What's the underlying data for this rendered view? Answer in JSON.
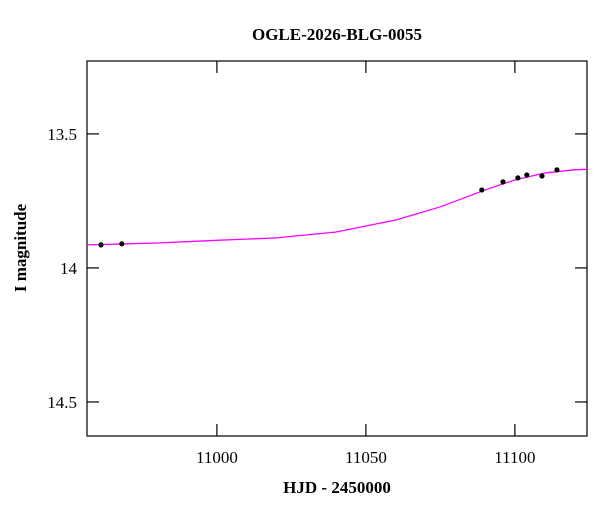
{
  "chart_data": {
    "type": "scatter",
    "title": "OGLE-2026-BLG-0055",
    "xlabel": "HJD - 2450000",
    "ylabel": "I magnitude",
    "xlim": [
      10956.4,
      11124.2
    ],
    "ylim": [
      13.228,
      14.627
    ],
    "y_inverted": true,
    "xticks": [
      11000,
      11050,
      11100
    ],
    "yticks": [
      13.5,
      14,
      14.5
    ],
    "series": [
      {
        "type": "scatter",
        "color": "#000000",
        "x": [
          10961.1,
          10968.1,
          11088.9,
          11096.0,
          11101.0,
          11104.0,
          11109.1,
          11114.1
        ],
        "values": [
          13.914,
          13.91,
          13.709,
          13.679,
          13.664,
          13.653,
          13.657,
          13.634
        ]
      },
      {
        "type": "line",
        "color": "#ff00ff",
        "x": [
          10956.4,
          10980,
          11000,
          11020,
          11040,
          11060,
          11075,
          11090,
          11100,
          11110,
          11120,
          11124.2
        ],
        "values": [
          13.914,
          13.907,
          13.897,
          13.888,
          13.866,
          13.821,
          13.772,
          13.709,
          13.672,
          13.646,
          13.634,
          13.632
        ]
      }
    ]
  }
}
